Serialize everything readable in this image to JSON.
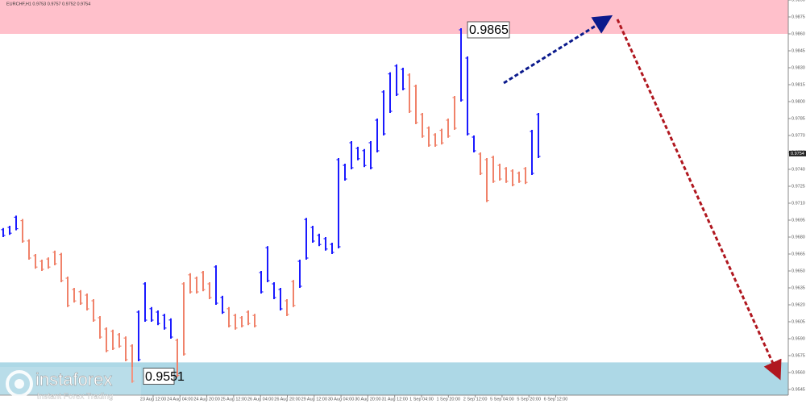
{
  "chart_data": {
    "type": "bars",
    "header": "EURCHF,H1  0.9753 0.9757 0.9752 0.9754",
    "ylim": [
      0.954,
      0.989
    ],
    "yticks": [
      {
        "value": 0.989,
        "label": "0.9890"
      },
      0.9875,
      {
        "value": 0.986,
        "label": "0.9860"
      },
      0.9845,
      {
        "value": 0.983,
        "label": "0.9830"
      },
      0.9815,
      {
        "value": 0.98,
        "label": "0.9800"
      },
      0.9785,
      {
        "value": 0.977,
        "label": "0.9770"
      },
      0.9755,
      {
        "value": 0.974,
        "label": "0.9740"
      },
      0.9725,
      {
        "value": 0.971,
        "label": "0.9710"
      },
      0.9695,
      {
        "value": 0.968,
        "label": "0.9680"
      },
      0.9665,
      {
        "value": 0.965,
        "label": "0.9650"
      },
      0.9635,
      {
        "value": 0.962,
        "label": "0.9620"
      },
      0.9605,
      {
        "value": 0.959,
        "label": "0.9590"
      },
      0.9575,
      {
        "value": 0.956,
        "label": "0.9560"
      },
      0.9545
    ],
    "current_price": 0.9754,
    "xticks": [
      "23 Aug 12:00",
      "24 Aug 04:00",
      "24 Aug 20:00",
      "25 Aug 12:00",
      "26 Aug 04:00",
      "26 Aug 20:00",
      "29 Aug 12:00",
      "30 Aug 04:00",
      "30 Aug 20:00",
      "31 Aug 12:00",
      "1 Sep 04:00",
      "1 Sep 20:00",
      "2 Sep 12:00",
      "5 Sep 04:00",
      "5 Sep 20:00",
      "6 Sep 12:00"
    ],
    "zones": [
      {
        "from": 0.986,
        "to": 0.989,
        "color": "#ffc0cb"
      },
      {
        "from": 0.954,
        "to": 0.9569,
        "color": "#add8e6"
      }
    ],
    "annotations": [
      0.9865,
      0.9551
    ],
    "logo": {
      "name": "instaforex",
      "tagline": "Instant Forex Trading"
    },
    "series": [
      {
        "color": "#1a1aff",
        "high": [
          0.9688,
          0.969,
          0.9699
        ],
        "low": [
          0.968,
          0.9682,
          0.9686
        ]
      },
      {
        "color": "#f0826a",
        "high": [
          0.9696,
          0.9678,
          0.9665,
          0.966,
          0.9662,
          0.9668,
          0.9666,
          0.9645,
          0.9635,
          0.9633,
          0.963,
          0.9625,
          0.961,
          0.96,
          0.9598,
          0.9595,
          0.9592,
          0.9585
        ],
        "low": [
          0.9675,
          0.966,
          0.9652,
          0.965,
          0.9652,
          0.9655,
          0.964,
          0.9618,
          0.9622,
          0.962,
          0.9615,
          0.9605,
          0.959,
          0.9578,
          0.958,
          0.9582,
          0.957,
          0.9551
        ]
      },
      {
        "color": "#1a1aff",
        "high": [
          0.9615,
          0.964,
          0.9618,
          0.9615,
          0.9612,
          0.9608
        ],
        "low": [
          0.957,
          0.9605,
          0.9605,
          0.9602,
          0.9598,
          0.959
        ]
      },
      {
        "color": "#f0826a",
        "high": [
          0.959,
          0.964,
          0.9648,
          0.9645,
          0.965,
          0.964
        ],
        "low": [
          0.9556,
          0.9575,
          0.963,
          0.963,
          0.9632,
          0.9625
        ]
      },
      {
        "color": "#1a1aff",
        "high": [
          0.9655,
          0.9628
        ],
        "low": [
          0.962,
          0.9612
        ]
      },
      {
        "color": "#f0826a",
        "high": [
          0.9618,
          0.9612,
          0.961,
          0.9615,
          0.9612
        ],
        "low": [
          0.96,
          0.9598,
          0.96,
          0.9602,
          0.96
        ]
      },
      {
        "color": "#1a1aff",
        "high": [
          0.965,
          0.9672,
          0.964,
          0.9635
        ],
        "low": [
          0.963,
          0.964,
          0.9625,
          0.9615
        ]
      },
      {
        "color": "#f0826a",
        "high": [
          0.9625,
          0.9642
        ],
        "low": [
          0.961,
          0.9618
        ]
      },
      {
        "color": "#1a1aff",
        "high": [
          0.966,
          0.9697,
          0.969,
          0.9683,
          0.968,
          0.9675,
          0.975,
          0.9745,
          0.9765,
          0.976,
          0.9758,
          0.9765,
          0.9785,
          0.981,
          0.9826,
          0.9833,
          0.983
        ],
        "low": [
          0.9635,
          0.966,
          0.9675,
          0.9672,
          0.9668,
          0.9665,
          0.967,
          0.973,
          0.974,
          0.9748,
          0.9742,
          0.974,
          0.9755,
          0.977,
          0.979,
          0.9805,
          0.981
        ]
      },
      {
        "color": "#f0826a",
        "high": [
          0.9825,
          0.9815,
          0.979,
          0.9778,
          0.9772,
          0.9776,
          0.9785,
          0.9805
        ],
        "low": [
          0.979,
          0.978,
          0.9768,
          0.976,
          0.976,
          0.9762,
          0.9768,
          0.9775
        ]
      },
      {
        "color": "#1a1aff",
        "high": [
          0.9865,
          0.984,
          0.977
        ],
        "low": [
          0.98,
          0.977,
          0.9755
        ]
      },
      {
        "color": "#f0826a",
        "high": [
          0.9755,
          0.975,
          0.9752,
          0.9745,
          0.9742,
          0.974,
          0.9738,
          0.9742
        ],
        "low": [
          0.9735,
          0.9711,
          0.9728,
          0.973,
          0.9728,
          0.9725,
          0.9728,
          0.9727
        ]
      },
      {
        "color": "#1a1aff",
        "high": [
          0.9775,
          0.979
        ],
        "low": [
          0.9735,
          0.975
        ]
      }
    ]
  }
}
